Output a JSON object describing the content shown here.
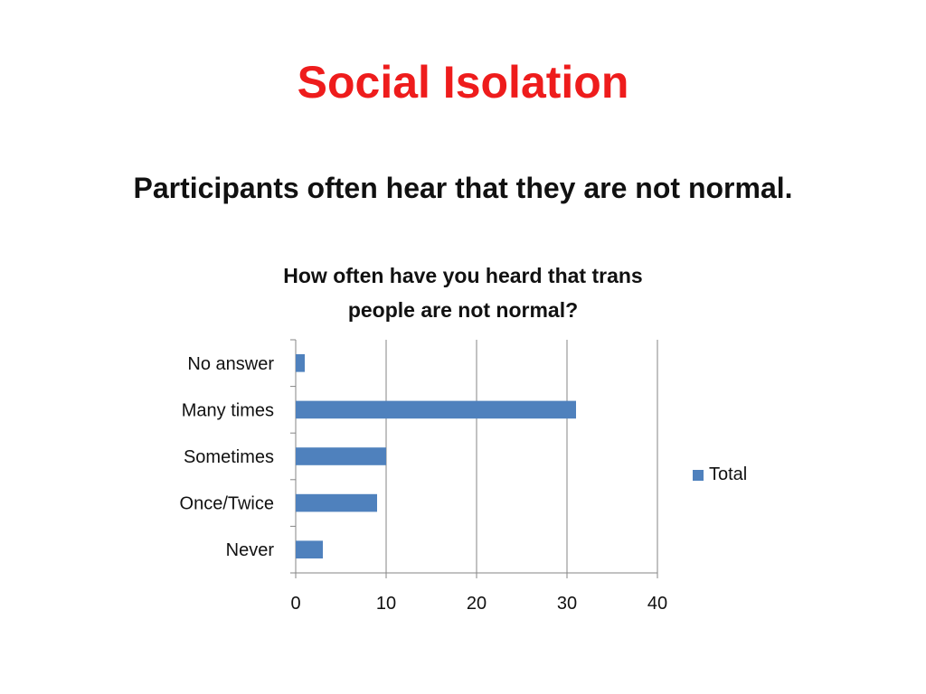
{
  "slide": {
    "title": "Social Isolation",
    "subtitle": "Participants often hear that they are not normal."
  },
  "chart_data": {
    "type": "bar",
    "orientation": "horizontal",
    "title_lines": [
      "How often have you heard that trans",
      "people are not normal?"
    ],
    "categories": [
      "No answer",
      "Many times",
      "Sometimes",
      "Once/Twice",
      "Never"
    ],
    "series": [
      {
        "name": "Total",
        "values": [
          1,
          31,
          10,
          9,
          3
        ],
        "color": "#4f81bd"
      }
    ],
    "xlim": [
      0,
      40
    ],
    "xticks": [
      "0",
      "10",
      "20",
      "30",
      "40"
    ],
    "grid": true,
    "legend_position": "right"
  }
}
